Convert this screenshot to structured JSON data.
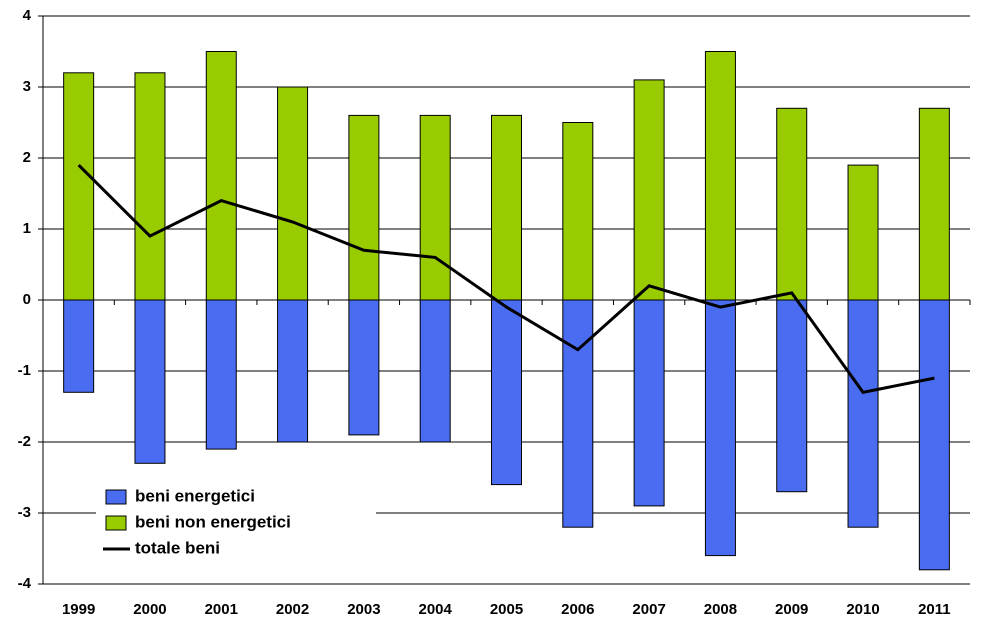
{
  "chart_data": {
    "type": "bar",
    "categories": [
      "1999",
      "2000",
      "2001",
      "2002",
      "2003",
      "2004",
      "2005",
      "2006",
      "2007",
      "2008",
      "2009",
      "2010",
      "2011"
    ],
    "series": [
      {
        "name": "beni energetici",
        "type": "bar",
        "color": "#4a6cf0",
        "values": [
          -1.3,
          -2.3,
          -2.1,
          -2.0,
          -1.9,
          -2.0,
          -2.6,
          -3.2,
          -2.9,
          -3.6,
          -2.7,
          -3.2,
          -3.8
        ]
      },
      {
        "name": "beni non energetici",
        "type": "bar",
        "color": "#99cc00",
        "values": [
          3.2,
          3.2,
          3.5,
          3.0,
          2.6,
          2.6,
          2.6,
          2.5,
          3.1,
          3.5,
          2.7,
          1.9,
          2.7
        ]
      },
      {
        "name": "totale beni",
        "type": "line",
        "color": "#000000",
        "values": [
          1.9,
          0.9,
          1.4,
          1.1,
          0.7,
          0.6,
          -0.1,
          -0.7,
          0.2,
          -0.1,
          0.1,
          -1.3,
          -1.1
        ]
      }
    ],
    "ylim": [
      -4,
      4
    ],
    "yticks": [
      -4,
      -3,
      -2,
      -1,
      0,
      1,
      2,
      3,
      4
    ],
    "grid": true,
    "legend": "lower-left"
  }
}
